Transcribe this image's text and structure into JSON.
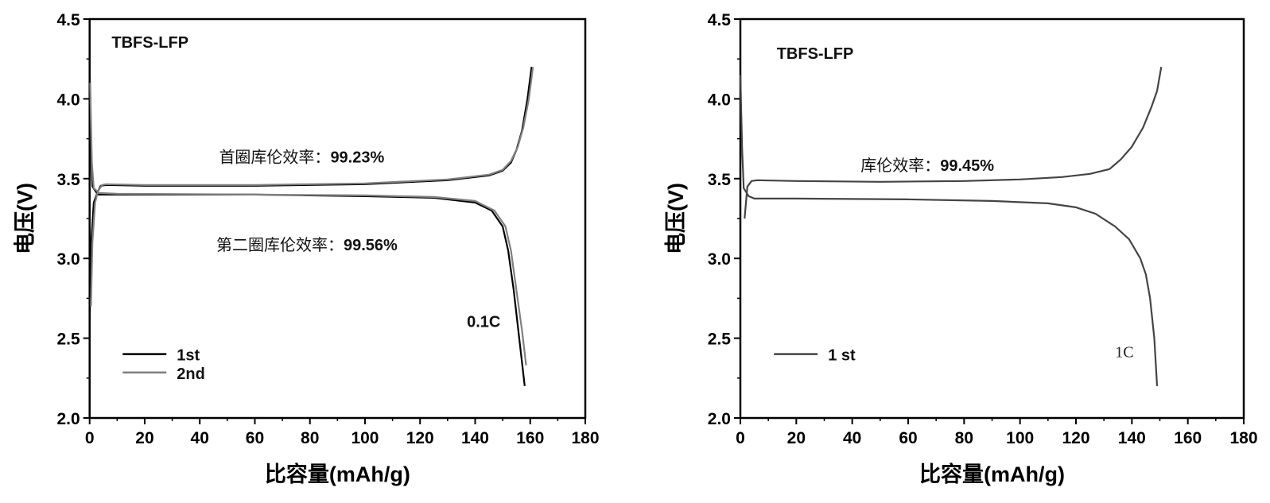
{
  "chart_data": [
    {
      "type": "line",
      "title": "TBFS-LFP",
      "xlabel": "比容量(mAh/g)",
      "ylabel": "电压(V)",
      "xlim": [
        0,
        180
      ],
      "ylim": [
        2.0,
        4.5
      ],
      "xticks": [
        "0",
        "20",
        "40",
        "60",
        "80",
        "100",
        "120",
        "140",
        "160",
        "180"
      ],
      "yticks": [
        "2.0",
        "2.5",
        "3.0",
        "3.5",
        "4.0",
        "4.5"
      ],
      "annotations": {
        "first": "首圈库伦效率：",
        "first_value": "99.23%",
        "second": "第二圈库伦效率：",
        "second_value": "99.56%",
        "rate": "0.1C"
      },
      "legend_position": "bottom-left",
      "series": [
        {
          "name": "1st",
          "color": "#000000",
          "charge": [
            [
              0,
              2.6
            ],
            [
              0.6,
              3.1
            ],
            [
              1.5,
              3.35
            ],
            [
              3,
              3.42
            ],
            [
              4,
              3.455
            ],
            [
              6,
              3.46
            ],
            [
              20,
              3.455
            ],
            [
              60,
              3.455
            ],
            [
              100,
              3.465
            ],
            [
              130,
              3.49
            ],
            [
              145,
              3.52
            ],
            [
              150,
              3.55
            ],
            [
              153,
              3.6
            ],
            [
              155,
              3.68
            ],
            [
              157,
              3.8
            ],
            [
              159,
              4.0
            ],
            [
              160.5,
              4.2
            ]
          ],
          "discharge": [
            [
              0,
              4.15
            ],
            [
              0.5,
              3.7
            ],
            [
              1,
              3.45
            ],
            [
              3,
              3.4
            ],
            [
              10,
              3.4
            ],
            [
              60,
              3.4
            ],
            [
              100,
              3.39
            ],
            [
              125,
              3.38
            ],
            [
              140,
              3.35
            ],
            [
              146,
              3.3
            ],
            [
              150,
              3.2
            ],
            [
              152,
              3.05
            ],
            [
              154,
              2.8
            ],
            [
              156,
              2.5
            ],
            [
              158,
              2.2
            ]
          ]
        },
        {
          "name": "2nd",
          "color": "#808080",
          "charge": [
            [
              0.5,
              2.7
            ],
            [
              1,
              3.1
            ],
            [
              2,
              3.35
            ],
            [
              3,
              3.42
            ],
            [
              4.5,
              3.46
            ],
            [
              6,
              3.465
            ],
            [
              20,
              3.46
            ],
            [
              60,
              3.46
            ],
            [
              100,
              3.47
            ],
            [
              130,
              3.495
            ],
            [
              145,
              3.525
            ],
            [
              150,
              3.555
            ],
            [
              153,
              3.61
            ],
            [
              155.5,
              3.7
            ],
            [
              157.5,
              3.82
            ],
            [
              159.5,
              4.0
            ],
            [
              161,
              4.2
            ]
          ],
          "discharge": [
            [
              0.2,
              4.1
            ],
            [
              0.8,
              3.6
            ],
            [
              1.5,
              3.44
            ],
            [
              3.5,
              3.41
            ],
            [
              10,
              3.405
            ],
            [
              60,
              3.4
            ],
            [
              100,
              3.395
            ],
            [
              125,
              3.385
            ],
            [
              140,
              3.36
            ],
            [
              147,
              3.3
            ],
            [
              151,
              3.2
            ],
            [
              153,
              3.05
            ],
            [
              155,
              2.8
            ],
            [
              157,
              2.55
            ],
            [
              158.5,
              2.33
            ]
          ]
        }
      ]
    },
    {
      "type": "line",
      "title": "TBFS-LFP",
      "xlabel": "比容量(mAh/g)",
      "ylabel": "电压(V)",
      "xlim": [
        0,
        180
      ],
      "ylim": [
        2.0,
        4.5
      ],
      "xticks": [
        "0",
        "20",
        "40",
        "60",
        "80",
        "100",
        "120",
        "140",
        "160",
        "180"
      ],
      "yticks": [
        "2.0",
        "2.5",
        "3.0",
        "3.5",
        "4.0",
        "4.5"
      ],
      "annotations": {
        "first": "库伦效率：",
        "first_value": "99.45%",
        "rate": "1C"
      },
      "legend_position": "bottom-left",
      "series": [
        {
          "name": "1 st",
          "color": "#444444",
          "charge": [
            [
              1.5,
              3.25
            ],
            [
              2.5,
              3.45
            ],
            [
              4,
              3.485
            ],
            [
              6,
              3.49
            ],
            [
              20,
              3.485
            ],
            [
              50,
              3.48
            ],
            [
              80,
              3.485
            ],
            [
              100,
              3.495
            ],
            [
              115,
              3.51
            ],
            [
              125,
              3.53
            ],
            [
              132,
              3.56
            ],
            [
              136,
              3.62
            ],
            [
              140,
              3.7
            ],
            [
              144,
              3.82
            ],
            [
              147,
              3.95
            ],
            [
              149,
              4.05
            ],
            [
              150.5,
              4.2
            ]
          ],
          "discharge": [
            [
              0,
              4.15
            ],
            [
              0.6,
              3.7
            ],
            [
              1.2,
              3.44
            ],
            [
              3,
              3.39
            ],
            [
              5,
              3.375
            ],
            [
              20,
              3.375
            ],
            [
              60,
              3.37
            ],
            [
              90,
              3.36
            ],
            [
              110,
              3.345
            ],
            [
              120,
              3.32
            ],
            [
              127,
              3.28
            ],
            [
              134,
              3.2
            ],
            [
              139,
              3.12
            ],
            [
              143,
              3.0
            ],
            [
              145,
              2.9
            ],
            [
              146.5,
              2.75
            ],
            [
              148,
              2.5
            ],
            [
              149,
              2.2
            ]
          ]
        }
      ]
    }
  ]
}
